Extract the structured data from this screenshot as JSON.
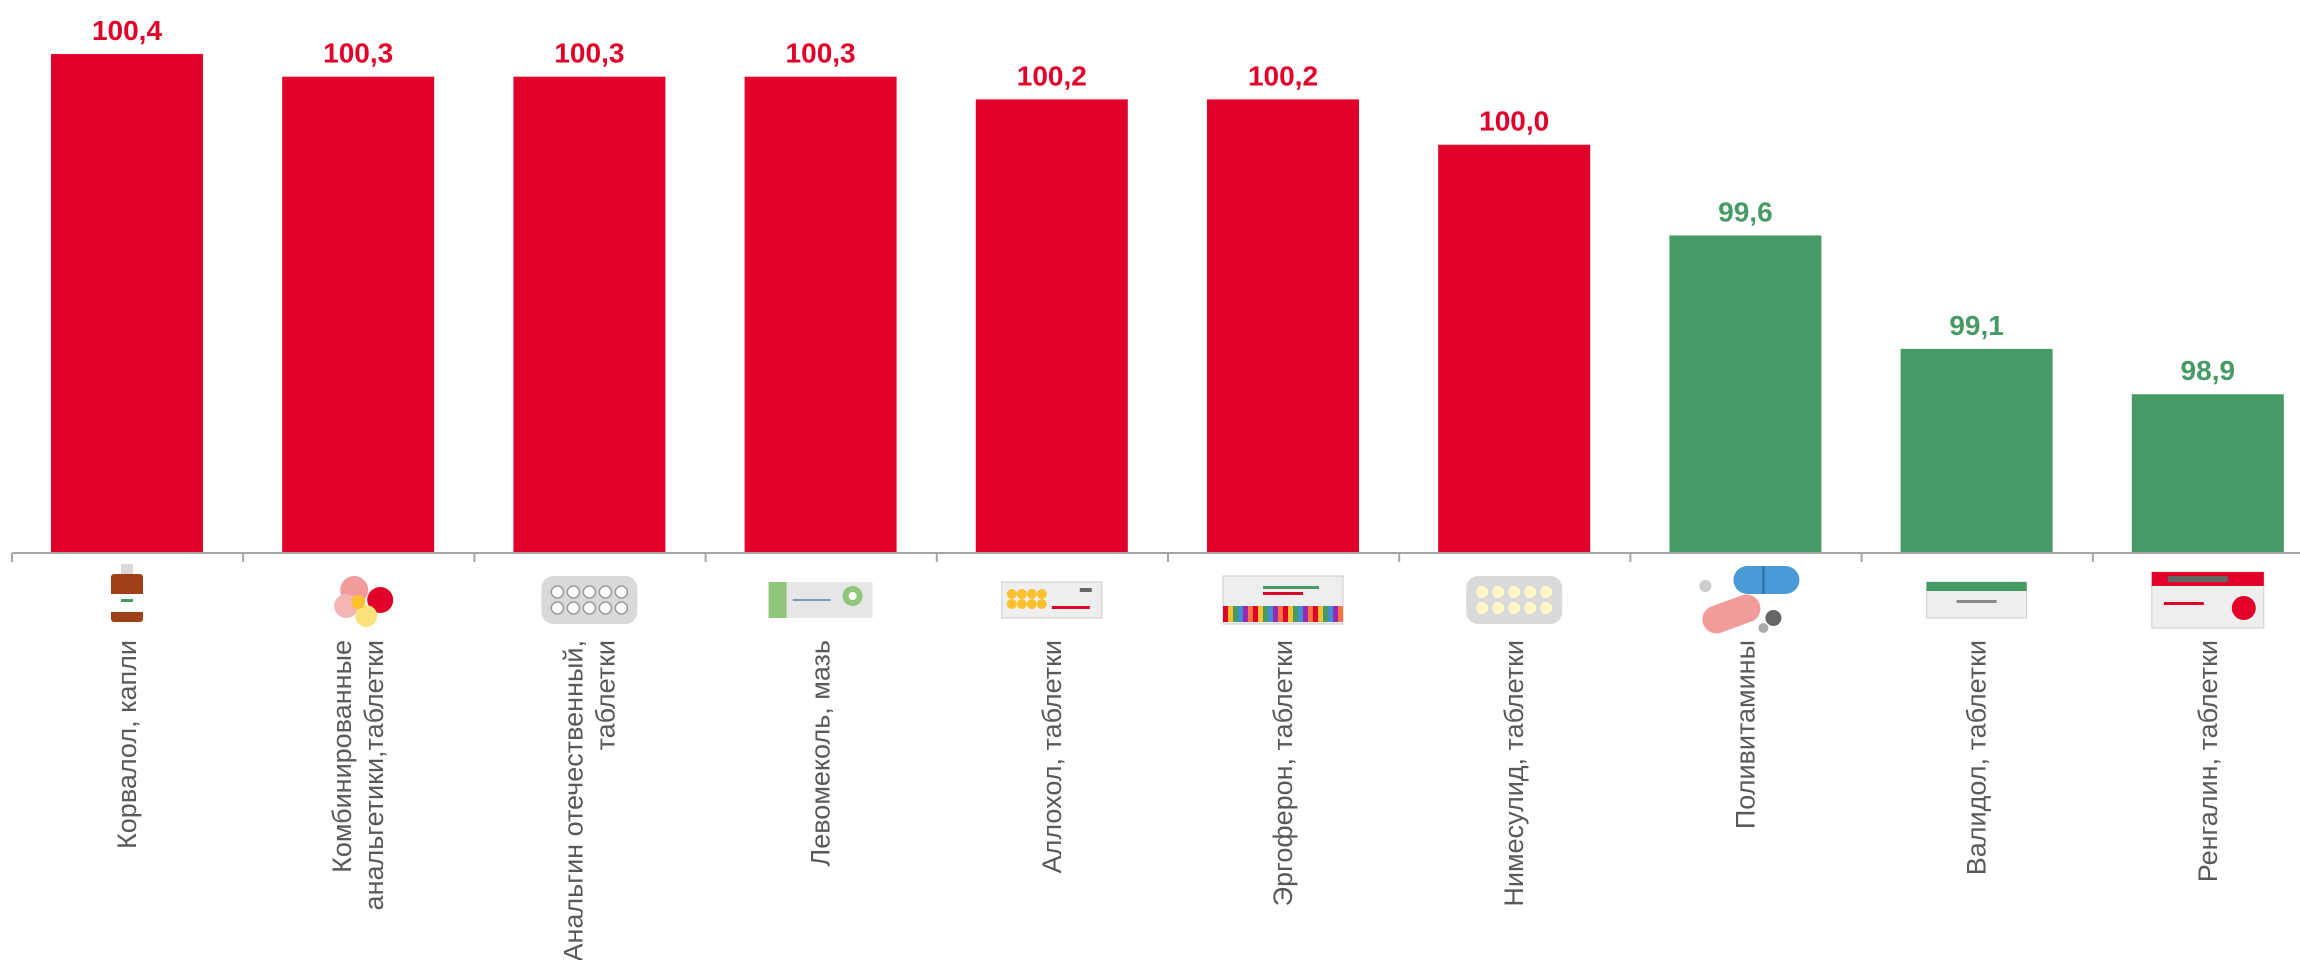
{
  "colors": {
    "above": "#e1002a",
    "below": "#469a66",
    "axis": "#a6a6a6",
    "label": "#595959"
  },
  "chart_data": {
    "type": "bar",
    "title": "",
    "xlabel": "",
    "ylabel": "",
    "categories": [
      [
        "Корвалол, капли"
      ],
      [
        "Комбинированные",
        "анальгетики,таблетки"
      ],
      [
        "Анальгин отечественный,",
        "таблетки"
      ],
      [
        "Левомеколь, мазь"
      ],
      [
        "Аллохол, таблетки"
      ],
      [
        "Эргоферон, таблетки"
      ],
      [
        "Нимесулид, таблетки"
      ],
      [
        "Поливитамины"
      ],
      [
        "Валидол, таблетки"
      ],
      [
        "Ренгалин, таблетки"
      ]
    ],
    "values": [
      100.4,
      100.3,
      100.3,
      100.3,
      100.2,
      100.2,
      100.0,
      99.6,
      99.1,
      98.9
    ],
    "value_labels": [
      "100,4",
      "100,3",
      "100,3",
      "100,3",
      "100,2",
      "100,2",
      "100,0",
      "99,6",
      "99,1",
      "98,9"
    ],
    "icons": [
      "dropper-bottle-icon",
      "mixed-pills-icon",
      "tablet-blister-icon",
      "ointment-box-icon",
      "tablet-box-icon",
      "colorful-box-icon",
      "yellow-blister-icon",
      "capsule-pills-icon",
      "green-box-icon",
      "red-box-icon"
    ],
    "threshold": 100.0,
    "grid": false,
    "legend": "none"
  }
}
